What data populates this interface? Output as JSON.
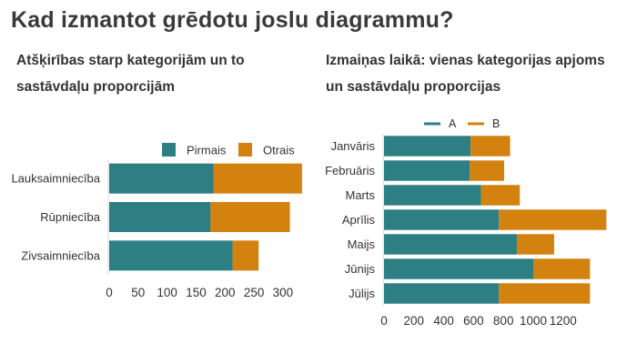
{
  "title": "Kad izmantot grēdotu joslu diagrammu?",
  "colors": {
    "teal": "#2d7f84",
    "orange": "#d4820f",
    "axis": "#d9d9d9",
    "text": "#333333"
  },
  "chart_data": [
    {
      "type": "bar",
      "orientation": "horizontal",
      "stacked": true,
      "title": "Atšķirības starp kategorijām un to sastāvdaļu proporcijām",
      "categories": [
        "Lauksaimniecība",
        "Rūpniecība",
        "Zivsaimniecība"
      ],
      "series": [
        {
          "name": "Pirmais",
          "color": "#2d7f84",
          "values": [
            180,
            175,
            213
          ]
        },
        {
          "name": "Otrais",
          "color": "#d4820f",
          "values": [
            153,
            137,
            45
          ]
        }
      ],
      "xticks": [
        "0",
        "50",
        "100",
        "150",
        "200",
        "250",
        "300"
      ],
      "xlim": [
        0,
        330
      ],
      "legend": "top-right",
      "grid": false
    },
    {
      "type": "bar",
      "orientation": "horizontal",
      "stacked": true,
      "title": "Izmaiņas laikā: vienas kategorijas apjoms un sastāvdaļu proporcijas",
      "categories": [
        "Janvāris",
        "Februāris",
        "Marts",
        "Aprīlis",
        "Maijs",
        "Jūnijs",
        "Jūlijs"
      ],
      "series": [
        {
          "name": "A",
          "color": "#2d7f84",
          "values": [
            580,
            575,
            650,
            770,
            890,
            1000,
            770
          ]
        },
        {
          "name": "B",
          "color": "#d4820f",
          "values": [
            265,
            230,
            260,
            720,
            250,
            380,
            610
          ]
        }
      ],
      "xticks": [
        "0",
        "200",
        "400",
        "600",
        "800",
        "1000",
        "1200"
      ],
      "xlim": [
        0,
        1500
      ],
      "legend": "top",
      "grid": false
    }
  ]
}
